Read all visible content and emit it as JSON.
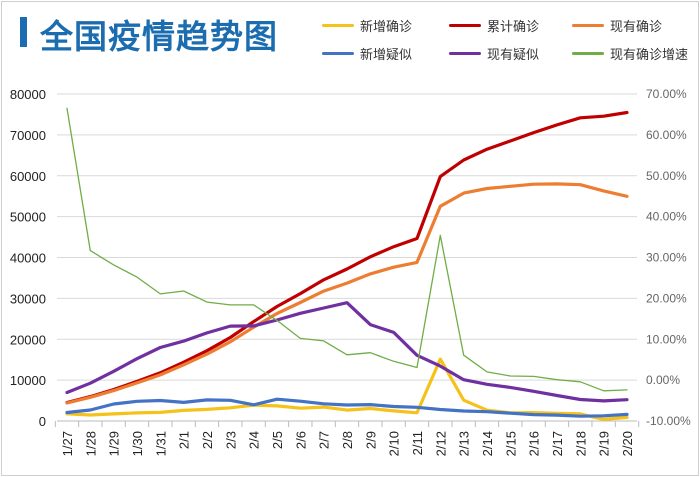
{
  "title": "全国疫情趋势图",
  "colors": {
    "title": "#1c6db0"
  },
  "chart_data": {
    "type": "line",
    "title": "全国疫情趋势图",
    "categories": [
      "1/27",
      "1/28",
      "1/29",
      "1/30",
      "1/31",
      "2/1",
      "2/2",
      "2/3",
      "2/4",
      "2/5",
      "2/6",
      "2/7",
      "2/8",
      "2/9",
      "2/10",
      "2/11",
      "2/12",
      "2/13",
      "2/14",
      "2/15",
      "2/16",
      "2/17",
      "2/18",
      "2/19",
      "2/20"
    ],
    "left_axis": {
      "ylim": [
        0,
        80000
      ],
      "ticks": [
        "0",
        "10000",
        "20000",
        "30000",
        "40000",
        "50000",
        "60000",
        "70000",
        "80000"
      ]
    },
    "right_axis": {
      "ylim": [
        -10,
        70
      ],
      "ticks": [
        "-10.00%",
        "0.00%",
        "10.00%",
        "20.00%",
        "30.00%",
        "40.00%",
        "50.00%",
        "60.00%",
        "70.00%"
      ]
    },
    "grid": true,
    "legend_position": "top-right",
    "series": [
      {
        "name": "新增确诊",
        "color": "#f4c21b",
        "axis": "left",
        "values": [
          1771,
          1459,
          1737,
          1982,
          2102,
          2590,
          2829,
          3235,
          3887,
          3694,
          3143,
          3399,
          2656,
          3062,
          2478,
          2015,
          15152,
          5090,
          2641,
          2009,
          2048,
          1886,
          1749,
          391,
          889
        ]
      },
      {
        "name": "累计确诊",
        "color": "#c00000",
        "axis": "left",
        "values": [
          4515,
          5974,
          7711,
          9692,
          11791,
          14380,
          17205,
          20438,
          24324,
          28018,
          31161,
          34546,
          37198,
          40171,
          42638,
          44653,
          59804,
          63851,
          66492,
          68500,
          70548,
          72436,
          74185,
          74576,
          75465
        ]
      },
      {
        "name": "现有确诊",
        "color": "#ed7d31",
        "axis": "left",
        "values": [
          4409,
          5806,
          7446,
          9320,
          11289,
          13748,
          16369,
          19381,
          22942,
          26302,
          28985,
          31774,
          33738,
          35982,
          37626,
          38800,
          52526,
          55748,
          56873,
          57416,
          57934,
          58016,
          57805,
          56303,
          54965
        ]
      },
      {
        "name": "新增疑似",
        "color": "#4472c4",
        "axis": "left",
        "values": [
          2077,
          2692,
          4148,
          4812,
          5019,
          4562,
          5173,
          5072,
          3971,
          5328,
          4833,
          4214,
          3916,
          4008,
          3536,
          3342,
          2807,
          2450,
          2277,
          1918,
          1563,
          1432,
          1185,
          1277,
          1614
        ]
      },
      {
        "name": "现有疑似",
        "color": "#7030a0",
        "axis": "left",
        "values": [
          6973,
          9239,
          12167,
          15238,
          17988,
          19544,
          21558,
          23214,
          23260,
          24702,
          26359,
          27657,
          28942,
          23589,
          21675,
          16067,
          13435,
          10109,
          8969,
          8228,
          7264,
          6242,
          5248,
          4922,
          5206
        ]
      },
      {
        "name": "现有确诊增速",
        "color": "#70ad47",
        "axis": "right",
        "values": [
          66.5,
          31.7,
          28.2,
          25.2,
          21.1,
          21.8,
          19.1,
          18.4,
          18.4,
          14.6,
          10.2,
          9.6,
          6.2,
          6.7,
          4.6,
          3.1,
          35.4,
          6.1,
          2.0,
          1.0,
          0.9,
          0.1,
          -0.4,
          -2.6,
          -2.4
        ]
      }
    ]
  }
}
